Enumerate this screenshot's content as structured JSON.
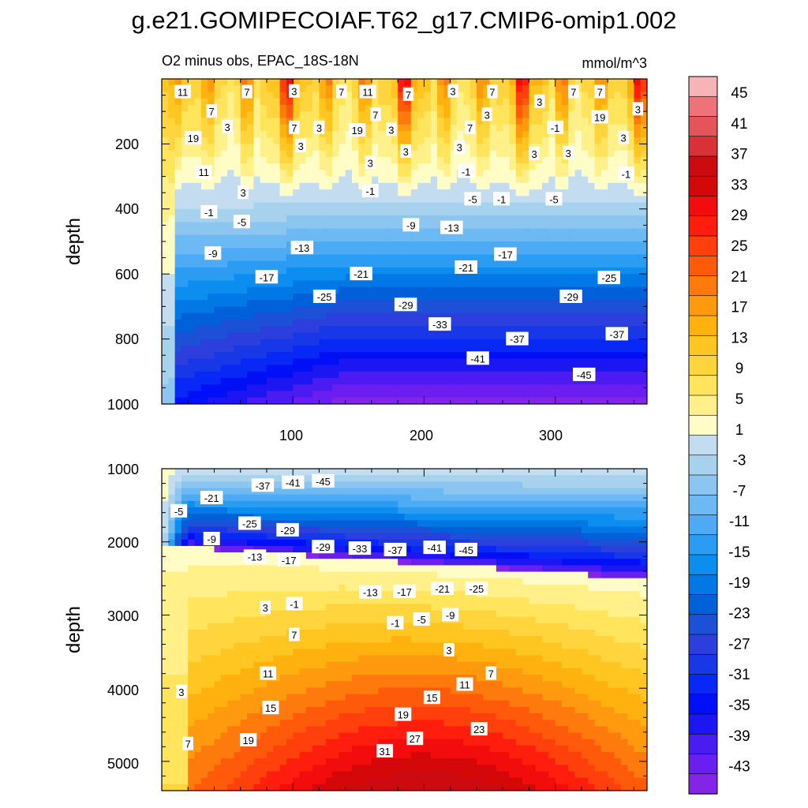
{
  "title": "g.e21.GOMIPECOIAF.T62_g17.CMIP6-omip1.002",
  "chart_data": [
    {
      "type": "heatmap",
      "panel": "upper",
      "left_string": "O2 minus obs, EPAC_18S-18N",
      "right_string": "mmol/m^3",
      "xlabel": "",
      "ylabel": "depth",
      "xlim": [
        0,
        370
      ],
      "ylim": [
        1000,
        0
      ],
      "xticks": [
        "100",
        "200",
        "300"
      ],
      "yticks": [
        "200",
        "400",
        "600",
        "800",
        "1000"
      ],
      "contour_labels": [
        {
          "text": "11",
          "x": 16,
          "y": 40
        },
        {
          "text": "7",
          "x": 65,
          "y": 40
        },
        {
          "text": "3",
          "x": 101,
          "y": 38
        },
        {
          "text": "7",
          "x": 137,
          "y": 40
        },
        {
          "text": "11",
          "x": 157,
          "y": 40
        },
        {
          "text": "7",
          "x": 188,
          "y": 48
        },
        {
          "text": "3",
          "x": 222,
          "y": 38
        },
        {
          "text": "7",
          "x": 252,
          "y": 40
        },
        {
          "text": "3",
          "x": 288,
          "y": 70
        },
        {
          "text": "7",
          "x": 314,
          "y": 40
        },
        {
          "text": "7",
          "x": 334,
          "y": 40
        },
        {
          "text": "3",
          "x": 363,
          "y": 93
        },
        {
          "text": "7",
          "x": 38,
          "y": 100
        },
        {
          "text": "3",
          "x": 50,
          "y": 148
        },
        {
          "text": "19",
          "x": 24,
          "y": 182
        },
        {
          "text": "7",
          "x": 101,
          "y": 150
        },
        {
          "text": "3",
          "x": 120,
          "y": 150
        },
        {
          "text": "19",
          "x": 149,
          "y": 158
        },
        {
          "text": "7",
          "x": 163,
          "y": 110
        },
        {
          "text": "3",
          "x": 175,
          "y": 156
        },
        {
          "text": "7",
          "x": 235,
          "y": 150
        },
        {
          "text": "3",
          "x": 248,
          "y": 110
        },
        {
          "text": "19",
          "x": 334,
          "y": 118
        },
        {
          "text": "-1",
          "x": 300,
          "y": 150
        },
        {
          "text": "3",
          "x": 352,
          "y": 181
        },
        {
          "text": "3",
          "x": 106,
          "y": 206
        },
        {
          "text": "3",
          "x": 186,
          "y": 223
        },
        {
          "text": "3",
          "x": 159,
          "y": 258
        },
        {
          "text": "3",
          "x": 227,
          "y": 210
        },
        {
          "text": "3",
          "x": 284,
          "y": 230
        },
        {
          "text": "3",
          "x": 310,
          "y": 228
        },
        {
          "text": "11",
          "x": 32,
          "y": 287
        },
        {
          "text": "-1",
          "x": 232,
          "y": 285
        },
        {
          "text": "-1",
          "x": 159,
          "y": 345
        },
        {
          "text": "-1",
          "x": 354,
          "y": 292
        },
        {
          "text": "3",
          "x": 62,
          "y": 350
        },
        {
          "text": "-5",
          "x": 237,
          "y": 370
        },
        {
          "text": "-1",
          "x": 259,
          "y": 370
        },
        {
          "text": "-5",
          "x": 299,
          "y": 370
        },
        {
          "text": "-1",
          "x": 36,
          "y": 410
        },
        {
          "text": "-5",
          "x": 61,
          "y": 440
        },
        {
          "text": "-9",
          "x": 190,
          "y": 450
        },
        {
          "text": "-13",
          "x": 221,
          "y": 458
        },
        {
          "text": "-13",
          "x": 107,
          "y": 520
        },
        {
          "text": "-9",
          "x": 39,
          "y": 537
        },
        {
          "text": "-17",
          "x": 262,
          "y": 540
        },
        {
          "text": "-21",
          "x": 232,
          "y": 580
        },
        {
          "text": "-21",
          "x": 152,
          "y": 600
        },
        {
          "text": "-17",
          "x": 80,
          "y": 610
        },
        {
          "text": "-25",
          "x": 341,
          "y": 612
        },
        {
          "text": "-25",
          "x": 124,
          "y": 670
        },
        {
          "text": "-29",
          "x": 186,
          "y": 695
        },
        {
          "text": "-29",
          "x": 312,
          "y": 670
        },
        {
          "text": "-33",
          "x": 212,
          "y": 755
        },
        {
          "text": "-37",
          "x": 271,
          "y": 800
        },
        {
          "text": "-37",
          "x": 347,
          "y": 785
        },
        {
          "text": "-41",
          "x": 241,
          "y": 860
        },
        {
          "text": "-45",
          "x": 322,
          "y": 910
        }
      ]
    },
    {
      "type": "heatmap",
      "panel": "lower",
      "xlabel": "",
      "ylabel": "depth",
      "xlim": [
        0,
        370
      ],
      "ylim": [
        5400,
        1000
      ],
      "yticks": [
        "1000",
        "2000",
        "3000",
        "4000",
        "5000"
      ],
      "contour_labels": [
        {
          "text": "-37",
          "x": 77,
          "y": 1230
        },
        {
          "text": "-41",
          "x": 100,
          "y": 1190
        },
        {
          "text": "-45",
          "x": 123,
          "y": 1170
        },
        {
          "text": "-21",
          "x": 38,
          "y": 1400
        },
        {
          "text": "-5",
          "x": 13,
          "y": 1580
        },
        {
          "text": "-25",
          "x": 67,
          "y": 1750
        },
        {
          "text": "-29",
          "x": 96,
          "y": 1840
        },
        {
          "text": "-9",
          "x": 38,
          "y": 1960
        },
        {
          "text": "-29",
          "x": 123,
          "y": 2070
        },
        {
          "text": "-33",
          "x": 151,
          "y": 2090
        },
        {
          "text": "-37",
          "x": 178,
          "y": 2110
        },
        {
          "text": "-41",
          "x": 208,
          "y": 2080
        },
        {
          "text": "-45",
          "x": 232,
          "y": 2110
        },
        {
          "text": "-13",
          "x": 71,
          "y": 2200
        },
        {
          "text": "-17",
          "x": 97,
          "y": 2250
        },
        {
          "text": "-13",
          "x": 159,
          "y": 2690
        },
        {
          "text": "-17",
          "x": 185,
          "y": 2680
        },
        {
          "text": "-21",
          "x": 214,
          "y": 2640
        },
        {
          "text": "-25",
          "x": 240,
          "y": 2640
        },
        {
          "text": "3",
          "x": 79,
          "y": 2900
        },
        {
          "text": "-1",
          "x": 101,
          "y": 2850
        },
        {
          "text": "-1",
          "x": 178,
          "y": 3110
        },
        {
          "text": "-5",
          "x": 198,
          "y": 3060
        },
        {
          "text": "-9",
          "x": 220,
          "y": 3000
        },
        {
          "text": "7",
          "x": 101,
          "y": 3270
        },
        {
          "text": "3",
          "x": 219,
          "y": 3480
        },
        {
          "text": "7",
          "x": 251,
          "y": 3800
        },
        {
          "text": "11",
          "x": 81,
          "y": 3800
        },
        {
          "text": "11",
          "x": 231,
          "y": 3950
        },
        {
          "text": "3",
          "x": 15,
          "y": 4050
        },
        {
          "text": "15",
          "x": 83,
          "y": 4270
        },
        {
          "text": "15",
          "x": 206,
          "y": 4130
        },
        {
          "text": "19",
          "x": 184,
          "y": 4360
        },
        {
          "text": "23",
          "x": 242,
          "y": 4560
        },
        {
          "text": "19",
          "x": 66,
          "y": 4710
        },
        {
          "text": "27",
          "x": 193,
          "y": 4690
        },
        {
          "text": "7",
          "x": 20,
          "y": 4760
        },
        {
          "text": "31",
          "x": 170,
          "y": 4860
        }
      ]
    },
    {
      "type": "colorbar",
      "labels": [
        "45",
        "41",
        "37",
        "33",
        "29",
        "25",
        "21",
        "17",
        "13",
        "9",
        "5",
        "1",
        "-3",
        "-7",
        "-11",
        "-15",
        "-19",
        "-23",
        "-27",
        "-31",
        "-35",
        "-39",
        "-43"
      ],
      "colors": [
        "#F8B3B6",
        "#EE7277",
        "#E55458",
        "#D93138",
        "#CD0A10",
        "#D40808",
        "#F20C0C",
        "#FF1E0E",
        "#FF400C",
        "#FF5A0A",
        "#FF7A0C",
        "#FF9A0E",
        "#FFB10E",
        "#FFC520",
        "#FFD43C",
        "#FFE45C",
        "#FFF08A",
        "#FFFCC6",
        "#C3DCF0",
        "#A7D2EE",
        "#8CC6F0",
        "#6DB9F4",
        "#4CABF4",
        "#2A9CF2",
        "#0C8EF0",
        "#0078E6",
        "#0060DA",
        "#1C50D6",
        "#2C3EDC",
        "#1838E8",
        "#0828F6",
        "#0010F6",
        "#1C16F2",
        "#4A1CF2",
        "#6A1EF0",
        "#8424E8"
      ]
    }
  ]
}
